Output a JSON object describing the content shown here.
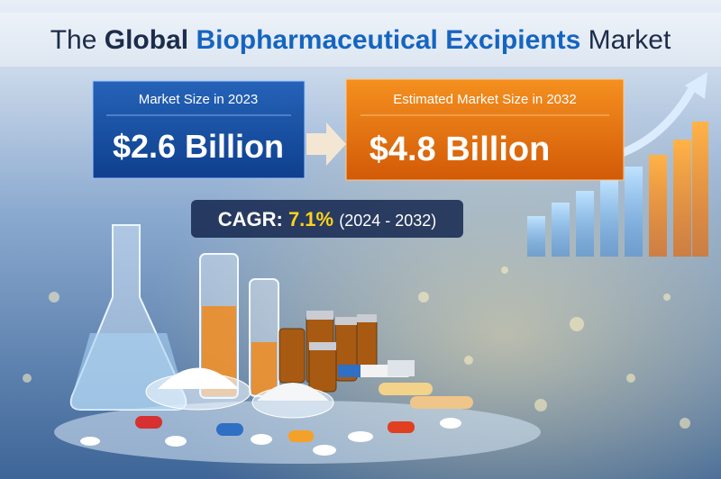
{
  "title": {
    "lead": "The",
    "bold": "Global",
    "highlight": "Biopharmaceutical Excipients",
    "tail": "Market"
  },
  "current": {
    "label": "Market Size in 2023",
    "value": "$2.6 Billion"
  },
  "forecast": {
    "label": "Estimated Market Size in 2032",
    "value": "$4.8 Billion"
  },
  "cagr": {
    "label": "CAGR:",
    "value": "7.1%",
    "period": "(2024 - 2032)"
  }
}
